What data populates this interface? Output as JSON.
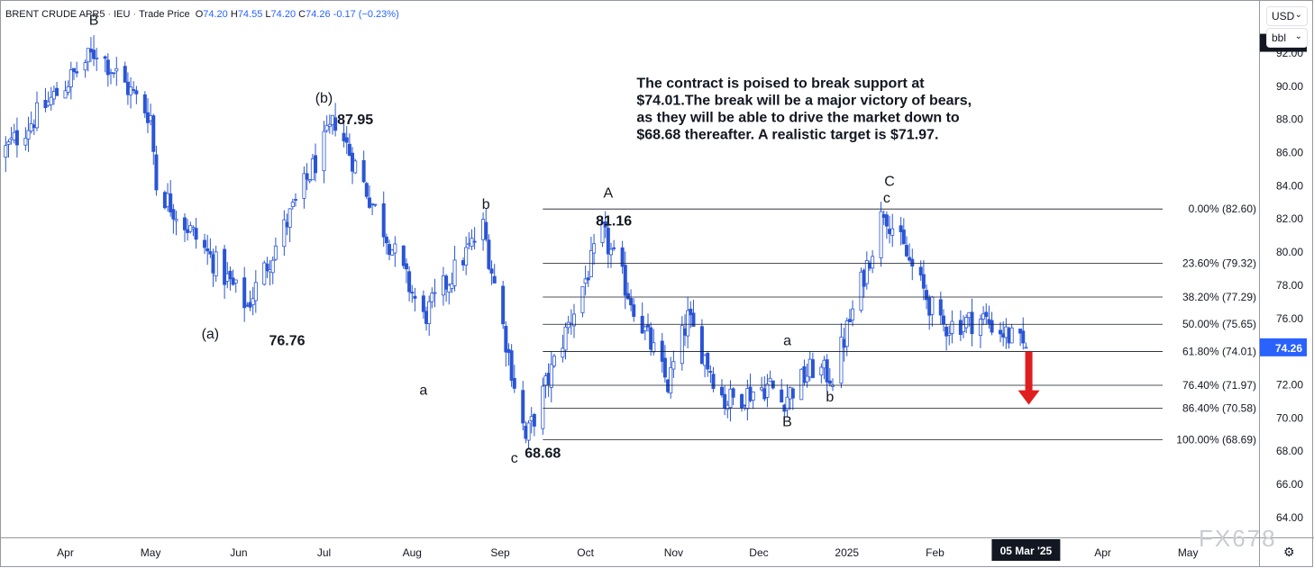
{
  "header": {
    "symbol": "BRENT CRUDE APR5",
    "exchange": "IEU",
    "price_type": "Trade Price",
    "open_label": "O",
    "open": "74.20",
    "high_label": "H",
    "high": "74.55",
    "low_label": "L",
    "low": "74.20",
    "close_label": "C",
    "close": "74.26",
    "change": "-0.17 (−0.23%)"
  },
  "controls": {
    "currency": "USD",
    "unit": "bbl",
    "settings_icon": "gear-icon"
  },
  "watermark": "FX678",
  "colors": {
    "candle": "#2a55d4",
    "accent": "#2962ff",
    "arrow": "#e01e1e",
    "fib_line": "#131722"
  },
  "chart_data": {
    "type": "candlestick",
    "y_axis": {
      "range": [
        62.8,
        95.2
      ],
      "ticks": [
        "92.00",
        "90.00",
        "88.00",
        "86.00",
        "84.00",
        "82.00",
        "80.00",
        "78.00",
        "76.00",
        "74.00",
        "72.00",
        "70.00",
        "68.00",
        "66.00",
        "64.00"
      ],
      "tick_values": [
        92,
        90,
        88,
        86,
        84,
        82,
        80,
        78,
        76,
        74,
        72,
        70,
        68,
        66,
        64
      ]
    },
    "x_axis": {
      "labels": [
        "Apr",
        "May",
        "Jun",
        "Jul",
        "Aug",
        "Sep",
        "Oct",
        "Nov",
        "Dec",
        "2025",
        "Feb",
        "Mar",
        "Apr",
        "May"
      ],
      "label_dates": [
        "2024-04-01",
        "2024-05-01",
        "2024-06-01",
        "2024-07-01",
        "2024-08-01",
        "2024-09-01",
        "2024-10-01",
        "2024-11-01",
        "2024-12-01",
        "2025-01-01",
        "2025-02-01",
        "2025-03-01",
        "2025-04-01",
        "2025-05-01"
      ],
      "range": [
        "2024-03-09",
        "2025-05-26"
      ],
      "highlighted_date": "05 Mar '25",
      "highlighted_x": "2025-03-05"
    },
    "price_badges": [
      {
        "label": "92.62",
        "value": 92.62,
        "style": "dark"
      },
      {
        "label": "74.26",
        "value": 74.26,
        "style": "blue"
      }
    ],
    "anchor_points": [
      {
        "date": "2024-03-09",
        "price": 85.8
      },
      {
        "date": "2024-04-12",
        "price": 92.2
      },
      {
        "date": "2024-05-01",
        "price": 88.2
      },
      {
        "date": "2024-05-03",
        "price": 84.0
      },
      {
        "date": "2024-06-04",
        "price": 76.76
      },
      {
        "date": "2024-07-05",
        "price": 87.95
      },
      {
        "date": "2024-08-05",
        "price": 76.0
      },
      {
        "date": "2024-08-26",
        "price": 81.5
      },
      {
        "date": "2024-09-10",
        "price": 68.68
      },
      {
        "date": "2024-10-07",
        "price": 81.16
      },
      {
        "date": "2024-10-30",
        "price": 72.0
      },
      {
        "date": "2024-11-06",
        "price": 76.0
      },
      {
        "date": "2024-11-19",
        "price": 71.0
      },
      {
        "date": "2024-12-05",
        "price": 72.0
      },
      {
        "date": "2024-12-09",
        "price": 71.0
      },
      {
        "date": "2024-12-20",
        "price": 73.0
      },
      {
        "date": "2024-12-27",
        "price": 72.5
      },
      {
        "date": "2025-01-14",
        "price": 82.6
      },
      {
        "date": "2025-02-03",
        "price": 75.5
      },
      {
        "date": "2025-02-18",
        "price": 76.0
      },
      {
        "date": "2025-03-04",
        "price": 74.3
      },
      {
        "date": "2025-03-05",
        "price": 74.26
      }
    ],
    "fib_levels": [
      {
        "label": "0.00% (82.60)",
        "value": 82.6
      },
      {
        "label": "23.60% (79.32)",
        "value": 79.32
      },
      {
        "label": "38.20% (77.29)",
        "value": 77.29
      },
      {
        "label": "50.00% (75.65)",
        "value": 75.65
      },
      {
        "label": "61.80% (74.01)",
        "value": 74.01
      },
      {
        "label": "76.40% (71.97)",
        "value": 71.97
      },
      {
        "label": "86.40% (70.58)",
        "value": 70.58
      },
      {
        "label": "100.00% (68.69)",
        "value": 68.69
      }
    ],
    "fib_start_date": "2024-09-16",
    "annotations": [
      {
        "text": "B",
        "date": "2024-04-11",
        "price": 93.7,
        "size": 16
      },
      {
        "text": "(b)",
        "date": "2024-07-01",
        "price": 89.0,
        "size": 16
      },
      {
        "text": "87.95",
        "date": "2024-07-12",
        "price": 87.7,
        "size": 16,
        "bold": true
      },
      {
        "text": "(a)",
        "date": "2024-05-22",
        "price": 74.8,
        "size": 16
      },
      {
        "text": "76.76",
        "date": "2024-06-18",
        "price": 74.4,
        "size": 16,
        "bold": true
      },
      {
        "text": "a",
        "date": "2024-08-05",
        "price": 71.4,
        "size": 16
      },
      {
        "text": "b",
        "date": "2024-08-27",
        "price": 82.6,
        "size": 16
      },
      {
        "text": "c",
        "date": "2024-09-06",
        "price": 67.3,
        "size": 16
      },
      {
        "text": "68.68",
        "date": "2024-09-16",
        "price": 67.6,
        "size": 16,
        "bold": true
      },
      {
        "text": "A",
        "date": "2024-10-09",
        "price": 83.3,
        "size": 16
      },
      {
        "text": "81.16",
        "date": "2024-10-11",
        "price": 81.6,
        "size": 16,
        "bold": true
      },
      {
        "text": "a",
        "date": "2024-12-11",
        "price": 74.4,
        "size": 16
      },
      {
        "text": "b",
        "date": "2024-12-26",
        "price": 71.0,
        "size": 16
      },
      {
        "text": "B",
        "date": "2024-12-11",
        "price": 69.5,
        "size": 16
      },
      {
        "text": "C",
        "date": "2025-01-16",
        "price": 84.0,
        "size": 16
      },
      {
        "text": "c",
        "date": "2025-01-15",
        "price": 83.0,
        "size": 16
      }
    ],
    "note": {
      "lines": [
        "The contract is poised to break support at",
        "$74.01.The break will be a major victory of bears,",
        "as they will be able to drive the market down to",
        "$68.68 thereafter. A realistic target is $71.97."
      ],
      "date": "2024-10-19",
      "price": 89.9
    },
    "arrow": {
      "date": "2025-03-06",
      "from": 74.01,
      "to": 70.8,
      "direction": "down"
    }
  }
}
